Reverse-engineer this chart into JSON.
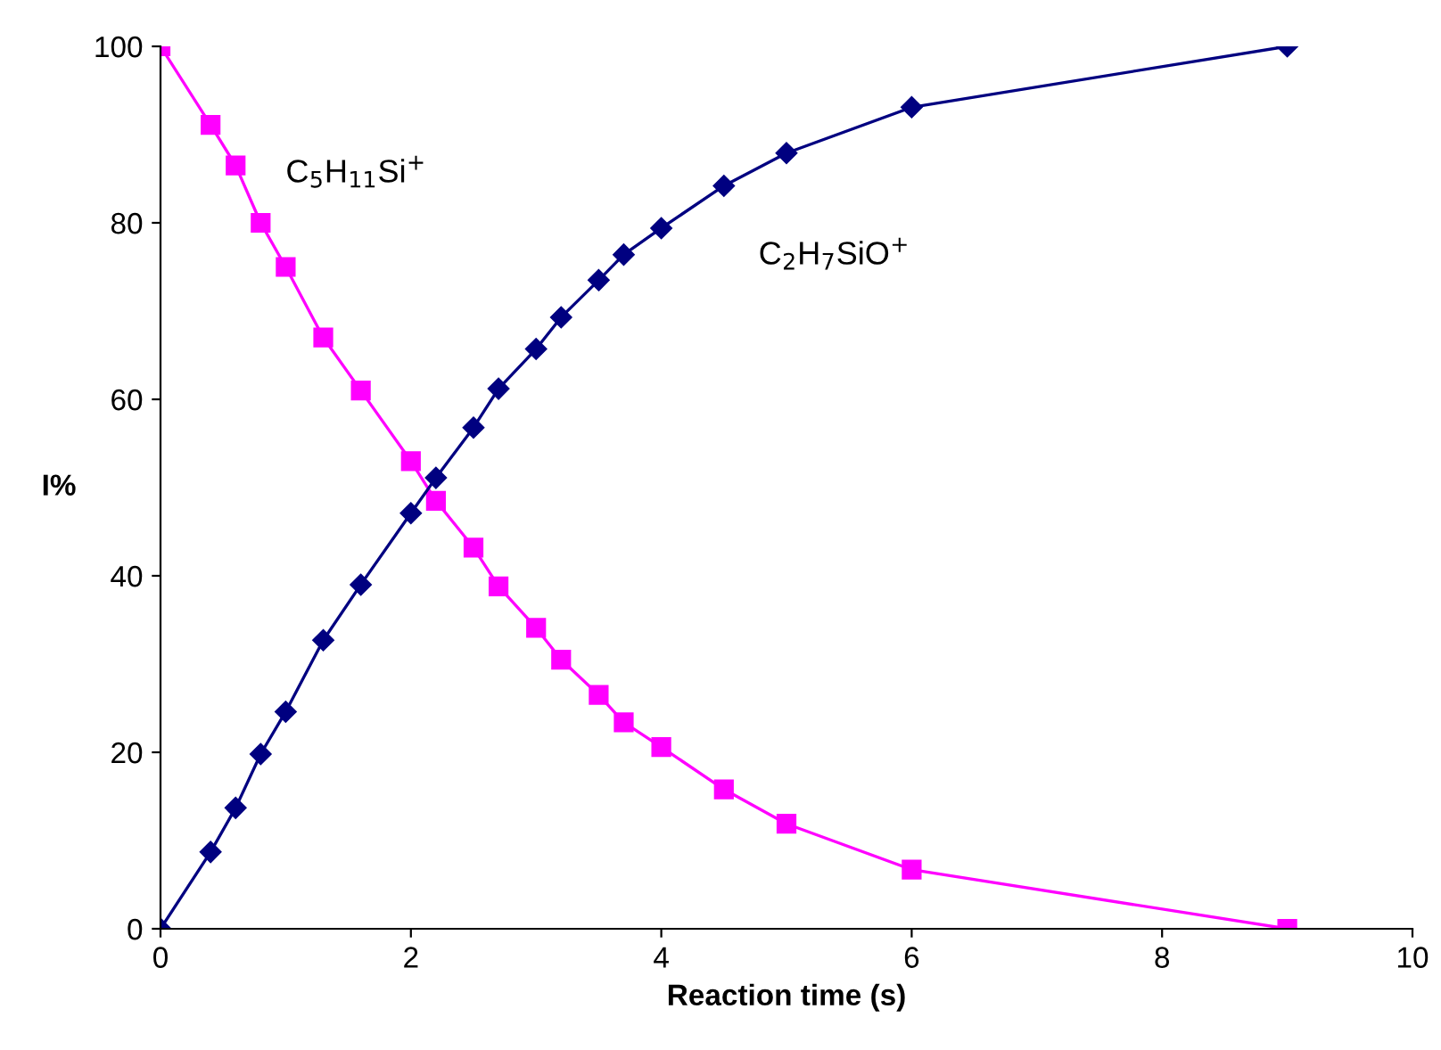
{
  "chart_data": {
    "type": "line",
    "xlabel": "Reaction time (s)",
    "ylabel": "I%",
    "xlim": [
      0,
      10
    ],
    "ylim": [
      0,
      100
    ],
    "xticks": [
      0,
      2,
      4,
      6,
      8,
      10
    ],
    "yticks": [
      0,
      20,
      40,
      60,
      80,
      100
    ],
    "grid": false,
    "legend": false,
    "line_style": "solid",
    "x": [
      0,
      0.4,
      0.6,
      0.8,
      1,
      1.3,
      1.6,
      2,
      2.2,
      2.5,
      2.7,
      3,
      3.2,
      3.5,
      3.7,
      4,
      4.5,
      5,
      6,
      9
    ],
    "series": [
      {
        "name": "C$_{5}$H$_{11}$Si$^{+}$",
        "color": "#ff00ff",
        "marker": "square",
        "values": [
          100,
          91.1,
          86.5,
          80,
          75,
          67,
          61,
          53,
          48.5,
          43.2,
          38.8,
          34.1,
          30.5,
          26.5,
          23.4,
          20.6,
          15.8,
          11.9,
          6.7,
          0
        ]
      },
      {
        "name": "C$_{2}$H$_{7}$SiO$^{+}$",
        "color": "#000080",
        "marker": "diamond",
        "values": [
          0,
          8.7,
          13.7,
          19.8,
          24.6,
          32.7,
          39,
          47.1,
          51.1,
          56.8,
          61.2,
          65.7,
          69.3,
          73.5,
          76.4,
          79.4,
          84.2,
          87.9,
          93.1,
          100
        ]
      }
    ]
  }
}
